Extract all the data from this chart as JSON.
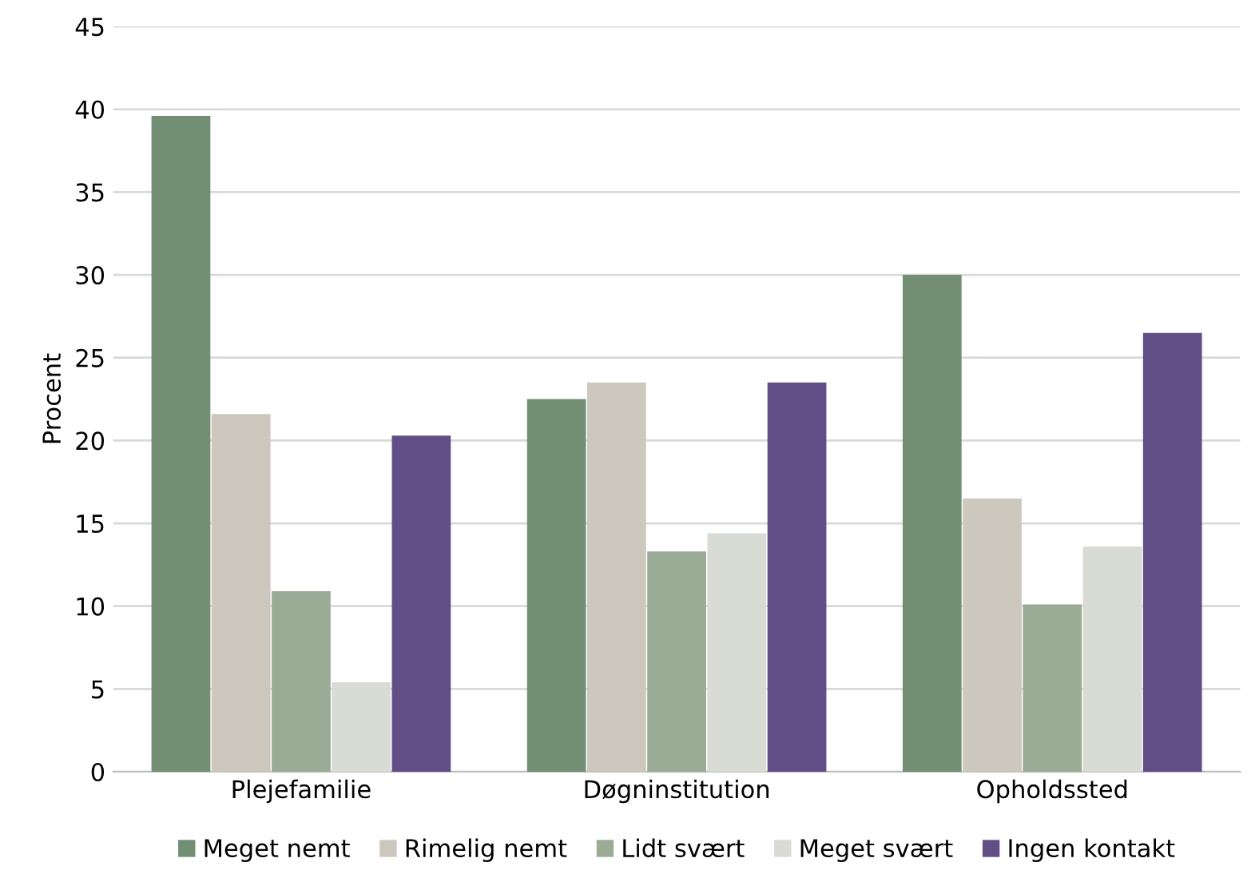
{
  "chart_data": {
    "type": "bar",
    "ylabel": "Procent",
    "categories": [
      "Plejefamilie",
      "Døgninstitution",
      "Opholdssted"
    ],
    "series": [
      {
        "name": "Meget nemt",
        "color": "#728f74",
        "values": [
          39.6,
          22.5,
          30.0
        ]
      },
      {
        "name": "Rimelig nemt",
        "color": "#cdc8bd",
        "values": [
          21.6,
          23.5,
          16.5
        ]
      },
      {
        "name": "Lidt svært",
        "color": "#9aab96",
        "values": [
          10.9,
          13.3,
          10.1
        ]
      },
      {
        "name": "Meget svært",
        "color": "#d8dcd5",
        "values": [
          5.4,
          14.4,
          13.6
        ]
      },
      {
        "name": "Ingen kontakt",
        "color": "#614e86",
        "values": [
          20.3,
          23.5,
          26.5
        ]
      }
    ],
    "ylim": [
      0,
      45
    ],
    "yticks": [
      0,
      5,
      10,
      15,
      20,
      25,
      30,
      35,
      40,
      45
    ],
    "grid": "y",
    "legend": "bottom"
  }
}
